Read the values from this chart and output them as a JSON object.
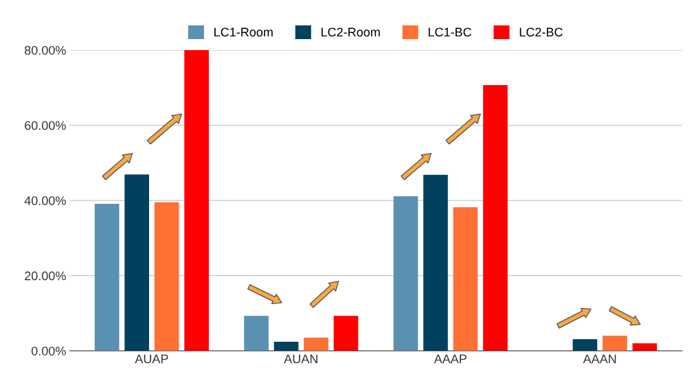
{
  "chart_data": {
    "type": "bar",
    "categories": [
      "AUAP",
      "AUAN",
      "AAAP",
      "AAAN"
    ],
    "series": [
      {
        "name": "LC1-Room",
        "color": "#5a91b0",
        "values": [
          39.1,
          9.3,
          41.1,
          0
        ]
      },
      {
        "name": "LC2-Room",
        "color": "#00425e",
        "values": [
          46.9,
          2.4,
          46.8,
          3.1
        ]
      },
      {
        "name": "LC1-BC",
        "color": "#ff7033",
        "values": [
          39.5,
          3.5,
          38.2,
          4.0
        ]
      },
      {
        "name": "LC2-BC",
        "color": "#ff0000",
        "values": [
          80.0,
          9.3,
          70.7,
          2.0
        ]
      }
    ],
    "ylim": [
      0,
      80
    ],
    "yticks": [
      {
        "value": 0,
        "label": "0.00%"
      },
      {
        "value": 20,
        "label": "20.00%"
      },
      {
        "value": 40,
        "label": "40.00%"
      },
      {
        "value": 60,
        "label": "60.00%"
      },
      {
        "value": 80,
        "label": "80.00%"
      }
    ],
    "grid": "y",
    "legend": "top"
  }
}
